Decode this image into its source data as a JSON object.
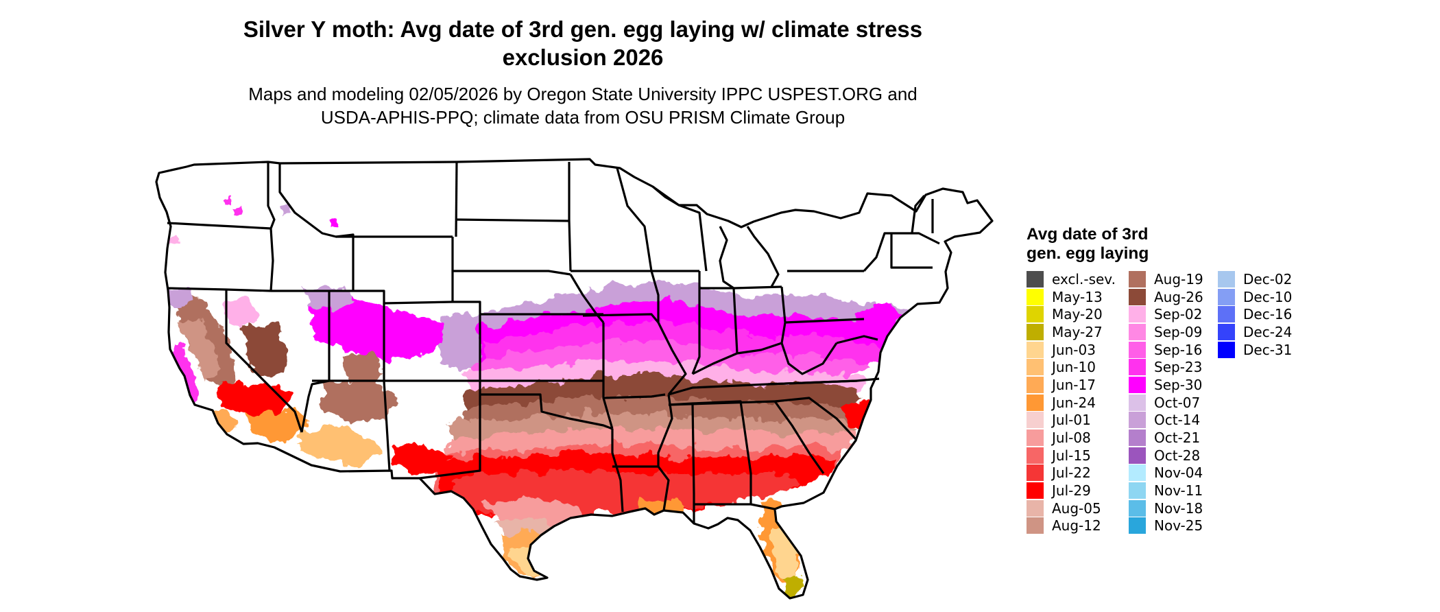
{
  "title_line1": "Silver Y moth: Avg date of 3rd gen. egg laying w/ climate stress",
  "title_line2": "exclusion 2026",
  "subtitle_line1": "Maps and modeling 02/05/2026 by Oregon State University IPPC USPEST.ORG and",
  "subtitle_line2": "USDA-APHIS-PPQ; climate data from OSU PRISM Climate Group",
  "legend": {
    "title_line1": "Avg date of 3rd",
    "title_line2": "gen. egg laying",
    "items": [
      {
        "label": "excl.-sev.",
        "color": "#4d4d4d"
      },
      {
        "label": "May-13",
        "color": "#ffff00"
      },
      {
        "label": "May-20",
        "color": "#dfd400"
      },
      {
        "label": "May-27",
        "color": "#bfae00"
      },
      {
        "label": "Jun-03",
        "color": "#ffd58f"
      },
      {
        "label": "Jun-10",
        "color": "#ffc072"
      },
      {
        "label": "Jun-17",
        "color": "#ffaa55"
      },
      {
        "label": "Jun-24",
        "color": "#ff9834"
      },
      {
        "label": "Jul-01",
        "color": "#f7cfcf"
      },
      {
        "label": "Jul-08",
        "color": "#f79c9c"
      },
      {
        "label": "Jul-15",
        "color": "#f76666"
      },
      {
        "label": "Jul-22",
        "color": "#f53636"
      },
      {
        "label": "Jul-29",
        "color": "#ff0000"
      },
      {
        "label": "Aug-05",
        "color": "#e8b4a8"
      },
      {
        "label": "Aug-12",
        "color": "#cf9484"
      },
      {
        "label": "Aug-19",
        "color": "#b0705f"
      },
      {
        "label": "Aug-26",
        "color": "#8c4a38"
      },
      {
        "label": "Sep-02",
        "color": "#ffb0e8"
      },
      {
        "label": "Sep-09",
        "color": "#ff88e4"
      },
      {
        "label": "Sep-16",
        "color": "#ff5ee8"
      },
      {
        "label": "Sep-23",
        "color": "#ff32ee"
      },
      {
        "label": "Sep-30",
        "color": "#ff00ff"
      },
      {
        "label": "Oct-07",
        "color": "#dcc1e8"
      },
      {
        "label": "Oct-14",
        "color": "#c9a0d8"
      },
      {
        "label": "Oct-21",
        "color": "#b47fcc"
      },
      {
        "label": "Oct-28",
        "color": "#9b55bd"
      },
      {
        "label": "Nov-04",
        "color": "#b3ebff"
      },
      {
        "label": "Nov-11",
        "color": "#8ed6f2"
      },
      {
        "label": "Nov-18",
        "color": "#5bbde8"
      },
      {
        "label": "Nov-25",
        "color": "#29a6dc"
      },
      {
        "label": "Dec-02",
        "color": "#a7c7ee"
      },
      {
        "label": "Dec-10",
        "color": "#849ef4"
      },
      {
        "label": "Dec-16",
        "color": "#5d70f7"
      },
      {
        "label": "Dec-24",
        "color": "#3443fb"
      },
      {
        "label": "Dec-31",
        "color": "#0000ff"
      }
    ]
  }
}
